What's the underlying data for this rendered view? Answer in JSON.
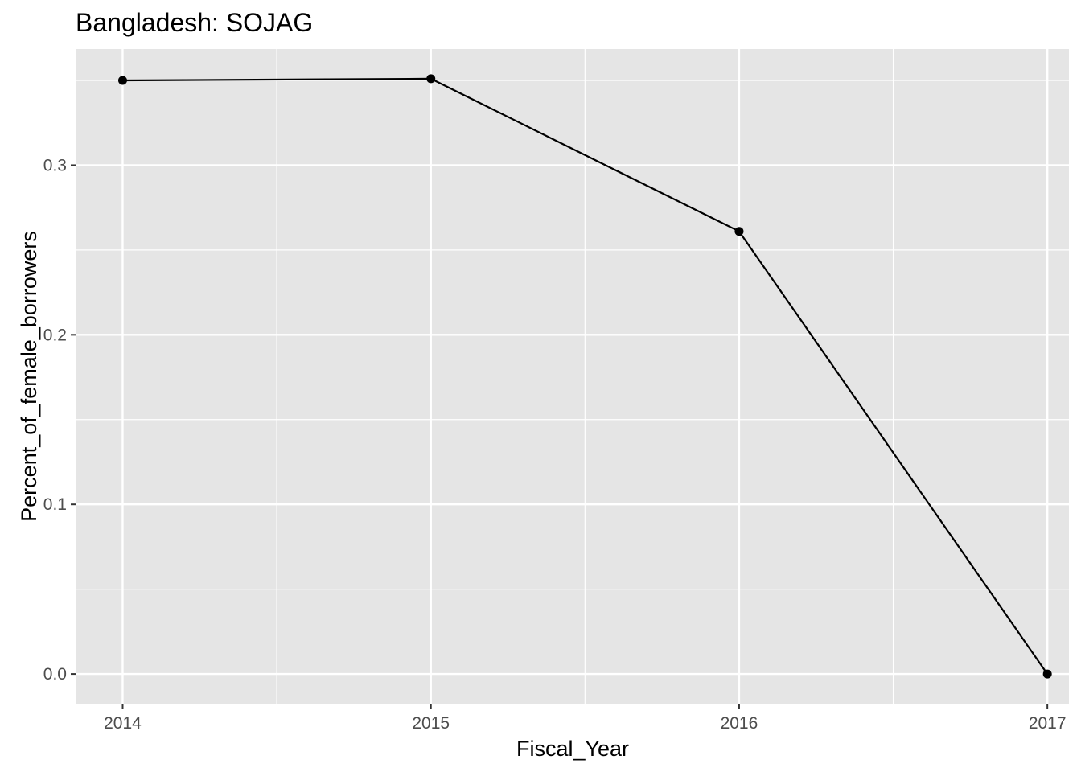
{
  "chart_data": {
    "type": "line",
    "title": "Bangladesh:  SOJAG",
    "xlabel": "Fiscal_Year",
    "ylabel": "Percent_of_female_borrowers",
    "x": [
      2014,
      2015,
      2016,
      2017
    ],
    "series": [
      {
        "values": [
          0.35,
          0.351,
          0.261,
          0.0
        ]
      }
    ],
    "x_ticks": [
      "2014",
      "2015",
      "2016",
      "2017"
    ],
    "y_ticks": [
      "0.0",
      "0.1",
      "0.2",
      "0.3"
    ],
    "xlim": [
      2013.85,
      2017.07
    ],
    "ylim": [
      -0.0175,
      0.3685
    ],
    "grid": true,
    "colors": {
      "panel": "#e5e5e5",
      "grid": "#ffffff",
      "line": "#000000",
      "tick_text": "#4d4d4d"
    }
  }
}
